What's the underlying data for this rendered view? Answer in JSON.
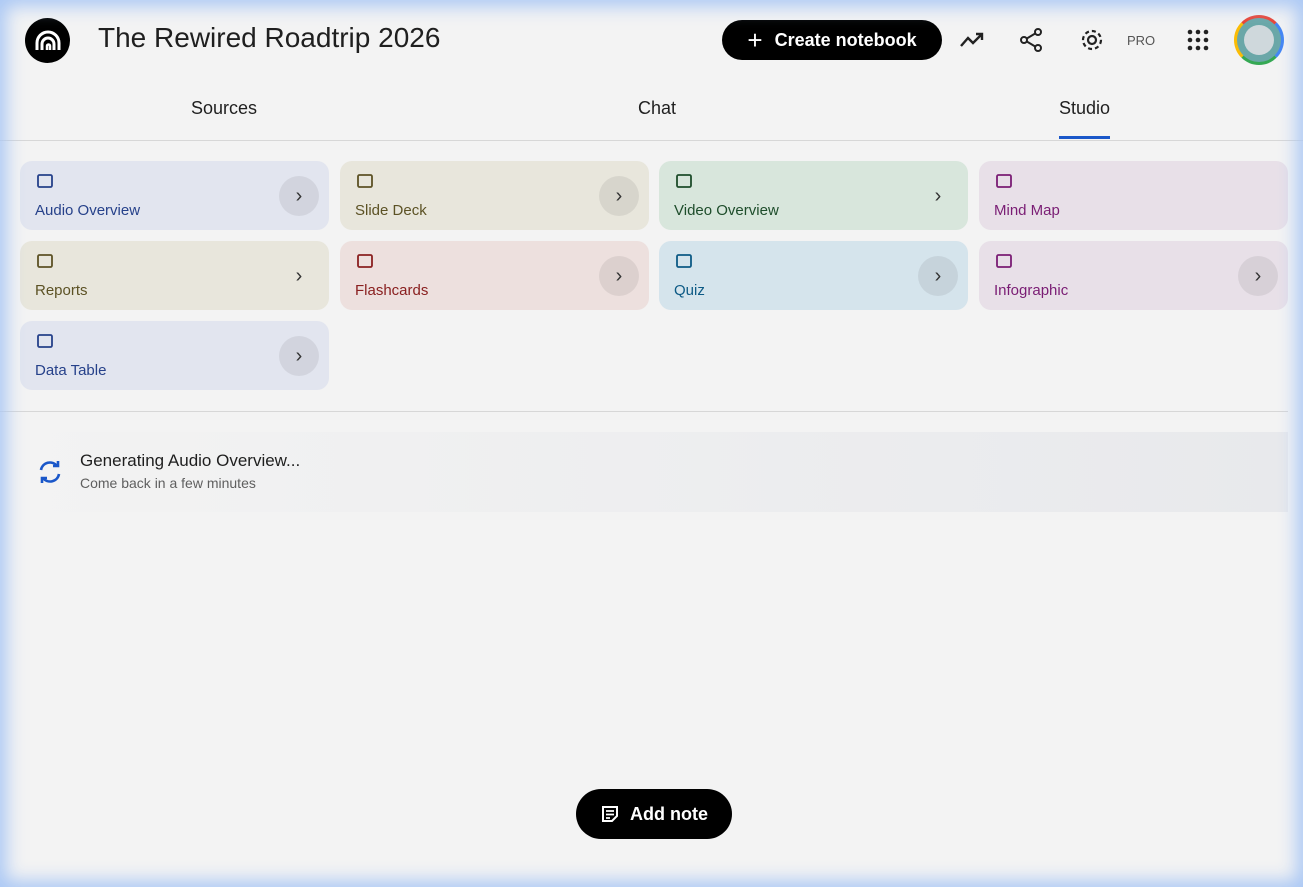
{
  "header": {
    "title": "The Rewired Roadtrip 2026",
    "create_label": "Create notebook",
    "pro_label": "PRO"
  },
  "tabs": [
    {
      "label": "Sources"
    },
    {
      "label": "Chat"
    },
    {
      "label": "Studio",
      "active": true
    }
  ],
  "studio_tools": [
    {
      "label": "Audio Overview",
      "icon": "audio-waveform-icon",
      "bg": "#e2e5ef",
      "color": "#26418a"
    },
    {
      "label": "Slide Deck",
      "icon": "slides-icon",
      "bg": "#e8e6dc",
      "color": "#5c5225"
    },
    {
      "label": "Video Overview",
      "icon": "video-icon",
      "bg": "#d8e6dc",
      "color": "#1e4d2b"
    },
    {
      "label": "Mind Map",
      "icon": "mind-map-icon",
      "bg": "#e8e0e8",
      "color": "#7a1d74"
    },
    {
      "label": "Reports",
      "icon": "reports-icon",
      "bg": "#e8e6dc",
      "color": "#5c5225"
    },
    {
      "label": "Flashcards",
      "icon": "flashcards-icon",
      "bg": "#ede0de",
      "color": "#8a2020"
    },
    {
      "label": "Quiz",
      "icon": "quiz-icon",
      "bg": "#d5e4ec",
      "color": "#0d5a85"
    },
    {
      "label": "Infographic",
      "icon": "infographic-icon",
      "bg": "#e8e0e8",
      "color": "#7a1d74"
    },
    {
      "label": "Data Table",
      "icon": "table-icon",
      "bg": "#e2e5ef",
      "color": "#26418a"
    }
  ],
  "generating": {
    "title": "Generating Audio Overview...",
    "subtitle": "Come back in a few minutes"
  },
  "add_note_label": "Add note",
  "colors": {
    "accent": "#1a57c9"
  }
}
